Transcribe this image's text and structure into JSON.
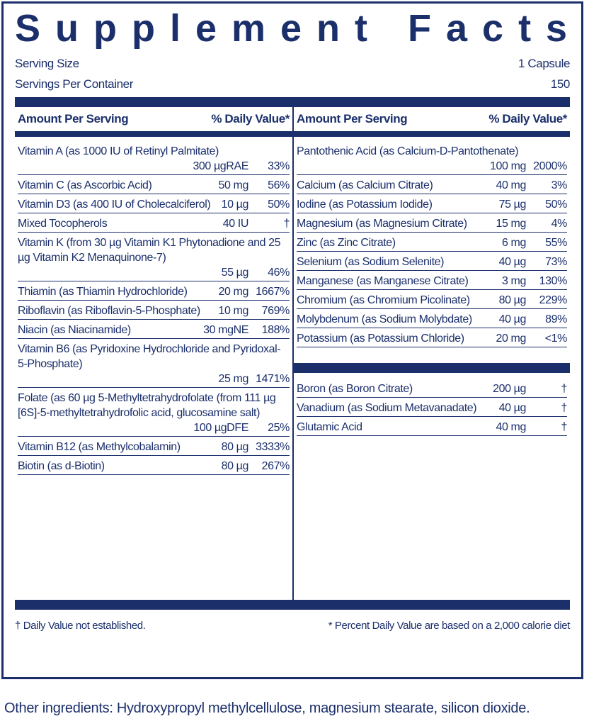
{
  "title": "Supplement Facts",
  "serving": {
    "size_label": "Serving Size",
    "size": "1 Capsule",
    "per_container_label": "Servings Per Container",
    "per_container": "150"
  },
  "columns": [
    {
      "amount_header": "Amount Per Serving",
      "dv_header": "% Daily Value*",
      "rows": [
        {
          "name": "Vitamin A (as 1000 IU of Retinyl Palmitate)",
          "amount": "300 µgRAE",
          "dv": "33%"
        },
        {
          "name": "Vitamin C (as Ascorbic Acid)",
          "amount": "50 mg",
          "dv": "56%"
        },
        {
          "name": "Vitamin D3 (as 400 IU of Cholecalciferol)",
          "amount": "10 µg",
          "dv": "50%"
        },
        {
          "name": "Mixed Tocopherols",
          "amount": "40 IU",
          "dv": "†"
        },
        {
          "name": "Vitamin K (from 30 µg Vitamin K1 Phytonadione and 25 µg Vitamin K2 Menaquinone-7)",
          "amount": "55 µg",
          "dv": "46%"
        },
        {
          "name": "Thiamin (as Thiamin Hydrochloride)",
          "amount": "20 mg",
          "dv": "1667%"
        },
        {
          "name": "Riboflavin (as Riboflavin-5-Phosphate)",
          "amount": "10 mg",
          "dv": "769%"
        },
        {
          "name": "Niacin (as Niacinamide)",
          "amount": "30 mgNE",
          "dv": "188%"
        },
        {
          "name": "Vitamin B6 (as Pyridoxine Hydrochloride and Pyridoxal-5-Phosphate)",
          "amount": "25 mg",
          "dv": "1471%"
        },
        {
          "name": "Folate (as 60 µg 5-Methyltetrahydrofolate (from 111 µg [6S]-5-methyltetrahydrofolic acid, glucosamine salt)",
          "amount": "100 µgDFE",
          "dv": "25%"
        },
        {
          "name": "Vitamin B12 (as Methylcobalamin)",
          "amount": "80 µg",
          "dv": "3333%"
        },
        {
          "name": "Biotin (as d-Biotin)",
          "amount": "80 µg",
          "dv": "267%"
        }
      ]
    },
    {
      "amount_header": "Amount Per Serving",
      "dv_header": "% Daily Value*",
      "rows": [
        {
          "name": "Pantothenic Acid (as Calcium-D-Pantothenate)",
          "amount": "100 mg",
          "dv": "2000%"
        },
        {
          "name": "Calcium (as Calcium Citrate)",
          "amount": "40 mg",
          "dv": "3%"
        },
        {
          "name": "Iodine (as Potassium Iodide)",
          "amount": "75 µg",
          "dv": "50%"
        },
        {
          "name": "Magnesium (as Magnesium Citrate)",
          "amount": "15 mg",
          "dv": "4%"
        },
        {
          "name": "Zinc (as Zinc Citrate)",
          "amount": "6 mg",
          "dv": "55%"
        },
        {
          "name": "Selenium (as Sodium Selenite)",
          "amount": "40 µg",
          "dv": "73%"
        },
        {
          "name": "Manganese (as Manganese Citrate)",
          "amount": "3 mg",
          "dv": "130%"
        },
        {
          "name": "Chromium (as Chromium Picolinate)",
          "amount": "80 µg",
          "dv": "229%"
        },
        {
          "name": "Molybdenum (as Sodium Molybdate)",
          "amount": "40 µg",
          "dv": "89%"
        },
        {
          "name": "Potassium (as Potassium Chloride)",
          "amount": "20 mg",
          "dv": "<1%"
        }
      ],
      "extra_rows": [
        {
          "name": "Boron (as Boron Citrate)",
          "amount": "200 µg",
          "dv": "†"
        },
        {
          "name": "Vanadium (as Sodium Metavanadate)",
          "amount": "40 µg",
          "dv": "†"
        },
        {
          "name": "Glutamic Acid",
          "amount": "40 mg",
          "dv": "†"
        }
      ]
    }
  ],
  "footnotes": {
    "dagger": "† Daily Value not established.",
    "percent": "* Percent Daily Value are based on a 2,000 calorie diet"
  },
  "other_ingredients": "Other ingredients: Hydroxypropyl methylcellulose, magnesium stearate, silicon dioxide."
}
